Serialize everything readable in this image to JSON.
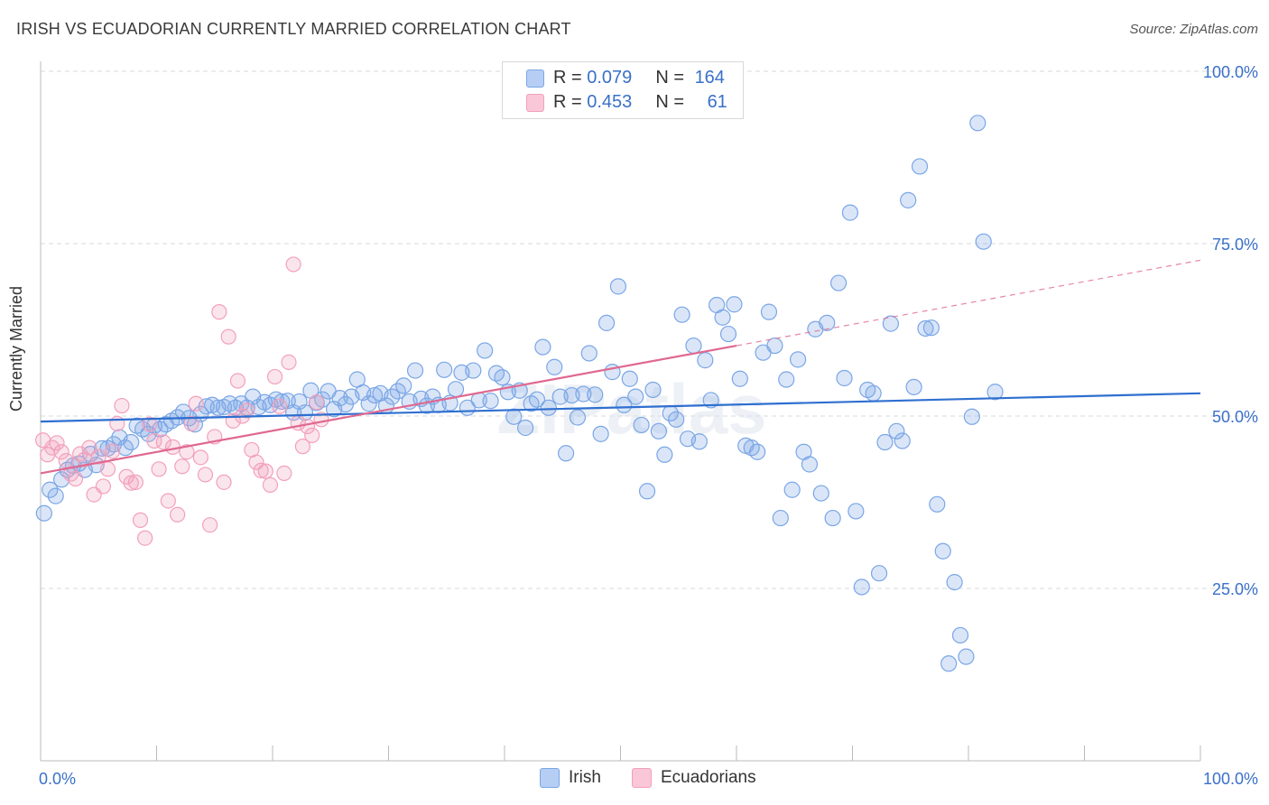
{
  "title": "IRISH VS ECUADORIAN CURRENTLY MARRIED CORRELATION CHART",
  "source": "Source: ZipAtlas.com",
  "watermark": "ZIPatlas",
  "stats": {
    "irish": {
      "r_label": "R = ",
      "r_value": "0.079",
      "n_label": "N = ",
      "n_value": "164"
    },
    "ecuadorian": {
      "r_label": "R = ",
      "r_value": "0.453",
      "n_label": "N = ",
      "n_value": "61"
    }
  },
  "legend": {
    "irish": "Irish",
    "ecuadorian": "Ecuadorians"
  },
  "chart_data": {
    "type": "scatter",
    "title": "IRISH VS ECUADORIAN CURRENTLY MARRIED CORRELATION CHART",
    "xlabel": "",
    "ylabel": "Currently Married",
    "xlim": [
      0,
      100
    ],
    "ylim": [
      0,
      100
    ],
    "x_tick_labels": [
      "0.0%",
      "100.0%"
    ],
    "y_tick_labels": [
      "25.0%",
      "50.0%",
      "75.0%",
      "100.0%"
    ],
    "y_ticks": [
      25,
      50,
      75,
      100
    ],
    "grid": true,
    "legend_position": "bottom",
    "colors": {
      "irish": "#7aa6e6",
      "irish_line": "#2f6fd0",
      "ecuadorian": "#f2a0bb",
      "ecuadorian_line": "#e06890",
      "axis_text": "#3a70c8"
    },
    "series": [
      {
        "name": "Irish",
        "trend": {
          "x": [
            0,
            100
          ],
          "y": [
            49.2,
            53.3
          ]
        },
        "points": [
          [
            0.3,
            35.9
          ],
          [
            0.8,
            39.3
          ],
          [
            1.3,
            38.4
          ],
          [
            1.8,
            40.8
          ],
          [
            2.3,
            42.2
          ],
          [
            2.8,
            42.8
          ],
          [
            3.3,
            43.1
          ],
          [
            3.8,
            42.2
          ],
          [
            4.3,
            44.5
          ],
          [
            4.8,
            42.9
          ],
          [
            5.3,
            45.3
          ],
          [
            5.8,
            45.3
          ],
          [
            6.3,
            45.9
          ],
          [
            6.8,
            46.9
          ],
          [
            7.3,
            45.4
          ],
          [
            7.8,
            46.2
          ],
          [
            8.3,
            48.6
          ],
          [
            8.8,
            48.1
          ],
          [
            9.3,
            47.4
          ],
          [
            9.8,
            48.6
          ],
          [
            10.3,
            48.1
          ],
          [
            10.8,
            48.8
          ],
          [
            11.3,
            49.3
          ],
          [
            11.8,
            49.8
          ],
          [
            12.3,
            50.6
          ],
          [
            12.8,
            49.7
          ],
          [
            13.3,
            48.8
          ],
          [
            13.8,
            50.3
          ],
          [
            14.3,
            51.4
          ],
          [
            14.8,
            51.6
          ],
          [
            15.3,
            51.2
          ],
          [
            15.8,
            51.3
          ],
          [
            16.3,
            51.8
          ],
          [
            16.8,
            51.2
          ],
          [
            17.3,
            51.8
          ],
          [
            17.8,
            51.2
          ],
          [
            18.3,
            52.8
          ],
          [
            18.8,
            51.3
          ],
          [
            19.3,
            52.0
          ],
          [
            19.8,
            51.6
          ],
          [
            20.3,
            52.4
          ],
          [
            20.8,
            52.1
          ],
          [
            21.3,
            52.2
          ],
          [
            21.8,
            50.5
          ],
          [
            22.3,
            52.1
          ],
          [
            22.8,
            50.5
          ],
          [
            23.3,
            53.7
          ],
          [
            23.8,
            51.9
          ],
          [
            24.3,
            52.4
          ],
          [
            24.8,
            53.6
          ],
          [
            25.3,
            51.0
          ],
          [
            25.8,
            52.6
          ],
          [
            26.3,
            51.7
          ],
          [
            26.8,
            52.8
          ],
          [
            27.3,
            55.3
          ],
          [
            27.8,
            53.4
          ],
          [
            28.3,
            51.8
          ],
          [
            28.8,
            53.0
          ],
          [
            29.3,
            53.3
          ],
          [
            29.8,
            51.5
          ],
          [
            30.3,
            52.8
          ],
          [
            30.8,
            53.6
          ],
          [
            31.3,
            54.4
          ],
          [
            31.8,
            52.1
          ],
          [
            32.3,
            56.6
          ],
          [
            32.8,
            52.5
          ],
          [
            33.3,
            51.5
          ],
          [
            33.8,
            52.8
          ],
          [
            34.3,
            51.6
          ],
          [
            34.8,
            56.7
          ],
          [
            35.3,
            51.9
          ],
          [
            35.8,
            53.9
          ],
          [
            36.3,
            56.3
          ],
          [
            36.8,
            51.2
          ],
          [
            37.3,
            56.6
          ],
          [
            37.8,
            52.3
          ],
          [
            38.3,
            59.5
          ],
          [
            38.8,
            52.2
          ],
          [
            39.3,
            56.2
          ],
          [
            39.8,
            55.6
          ],
          [
            40.3,
            53.5
          ],
          [
            40.8,
            49.9
          ],
          [
            41.3,
            53.7
          ],
          [
            41.8,
            48.3
          ],
          [
            42.3,
            51.8
          ],
          [
            42.8,
            52.4
          ],
          [
            43.3,
            60.0
          ],
          [
            43.8,
            51.2
          ],
          [
            44.3,
            57.1
          ],
          [
            44.8,
            52.8
          ],
          [
            45.3,
            44.6
          ],
          [
            45.8,
            53.0
          ],
          [
            46.3,
            49.8
          ],
          [
            46.8,
            53.2
          ],
          [
            47.3,
            59.1
          ],
          [
            47.8,
            53.1
          ],
          [
            48.3,
            47.4
          ],
          [
            48.8,
            63.5
          ],
          [
            49.3,
            56.4
          ],
          [
            49.8,
            68.8
          ],
          [
            50.3,
            51.6
          ],
          [
            50.8,
            55.4
          ],
          [
            51.3,
            52.8
          ],
          [
            51.8,
            48.7
          ],
          [
            52.3,
            39.1
          ],
          [
            52.8,
            53.8
          ],
          [
            53.3,
            47.8
          ],
          [
            53.8,
            44.4
          ],
          [
            54.3,
            50.4
          ],
          [
            54.8,
            49.5
          ],
          [
            55.3,
            64.7
          ],
          [
            55.8,
            46.7
          ],
          [
            56.3,
            60.2
          ],
          [
            56.8,
            46.3
          ],
          [
            57.3,
            58.1
          ],
          [
            57.8,
            52.3
          ],
          [
            58.3,
            66.1
          ],
          [
            58.8,
            64.3
          ],
          [
            59.3,
            61.9
          ],
          [
            59.8,
            66.2
          ],
          [
            60.3,
            55.4
          ],
          [
            60.8,
            45.7
          ],
          [
            61.3,
            45.4
          ],
          [
            61.8,
            44.8
          ],
          [
            62.3,
            59.2
          ],
          [
            62.8,
            65.1
          ],
          [
            63.3,
            60.2
          ],
          [
            63.8,
            35.2
          ],
          [
            64.3,
            55.3
          ],
          [
            64.8,
            39.3
          ],
          [
            65.3,
            58.2
          ],
          [
            65.8,
            44.8
          ],
          [
            66.3,
            43.0
          ],
          [
            66.8,
            62.6
          ],
          [
            67.3,
            38.8
          ],
          [
            67.8,
            63.5
          ],
          [
            68.3,
            35.2
          ],
          [
            68.8,
            69.3
          ],
          [
            69.3,
            55.5
          ],
          [
            69.8,
            79.5
          ],
          [
            70.3,
            36.2
          ],
          [
            70.8,
            25.2
          ],
          [
            71.3,
            53.8
          ],
          [
            71.8,
            53.3
          ],
          [
            72.3,
            27.2
          ],
          [
            72.8,
            46.2
          ],
          [
            73.3,
            63.4
          ],
          [
            73.8,
            47.8
          ],
          [
            74.3,
            46.4
          ],
          [
            74.8,
            81.3
          ],
          [
            75.3,
            54.2
          ],
          [
            75.8,
            86.2
          ],
          [
            76.3,
            62.7
          ],
          [
            76.8,
            62.8
          ],
          [
            77.3,
            37.2
          ],
          [
            77.8,
            30.4
          ],
          [
            78.3,
            14.1
          ],
          [
            78.8,
            25.9
          ],
          [
            79.3,
            18.2
          ],
          [
            79.8,
            15.1
          ],
          [
            80.3,
            49.9
          ],
          [
            80.8,
            92.5
          ],
          [
            81.3,
            75.3
          ],
          [
            82.3,
            53.5
          ]
        ]
      },
      {
        "name": "Ecuadorians",
        "trend": {
          "x": [
            0,
            60
          ],
          "y": [
            41.7,
            60.2
          ]
        },
        "dashed_trend": {
          "x": [
            60,
            100
          ],
          "y": [
            60.2,
            72.6
          ]
        },
        "points": [
          [
            0.2,
            46.5
          ],
          [
            0.6,
            44.4
          ],
          [
            1.0,
            45.4
          ],
          [
            1.4,
            46.1
          ],
          [
            1.8,
            44.8
          ],
          [
            2.2,
            43.5
          ],
          [
            2.6,
            41.6
          ],
          [
            3.0,
            40.9
          ],
          [
            3.4,
            44.5
          ],
          [
            3.8,
            43.7
          ],
          [
            4.2,
            45.4
          ],
          [
            4.6,
            38.6
          ],
          [
            5.0,
            44.1
          ],
          [
            5.4,
            39.8
          ],
          [
            5.8,
            42.3
          ],
          [
            6.2,
            44.9
          ],
          [
            6.6,
            48.9
          ],
          [
            7.0,
            51.5
          ],
          [
            7.4,
            41.2
          ],
          [
            7.8,
            40.3
          ],
          [
            8.2,
            40.4
          ],
          [
            8.6,
            34.9
          ],
          [
            9.0,
            32.3
          ],
          [
            9.4,
            48.8
          ],
          [
            9.8,
            46.4
          ],
          [
            10.2,
            42.3
          ],
          [
            10.6,
            46.2
          ],
          [
            11.0,
            37.7
          ],
          [
            11.4,
            45.5
          ],
          [
            11.8,
            35.7
          ],
          [
            12.2,
            42.7
          ],
          [
            12.6,
            44.8
          ],
          [
            13.0,
            48.9
          ],
          [
            13.4,
            51.8
          ],
          [
            13.8,
            44.0
          ],
          [
            14.2,
            41.5
          ],
          [
            14.6,
            34.2
          ],
          [
            15.0,
            47.0
          ],
          [
            15.4,
            65.1
          ],
          [
            15.8,
            40.4
          ],
          [
            16.2,
            61.5
          ],
          [
            16.6,
            49.3
          ],
          [
            17.0,
            55.1
          ],
          [
            17.4,
            50.0
          ],
          [
            17.8,
            50.8
          ],
          [
            18.2,
            45.1
          ],
          [
            18.6,
            43.3
          ],
          [
            19.0,
            42.1
          ],
          [
            19.4,
            42.0
          ],
          [
            19.8,
            40.0
          ],
          [
            20.2,
            55.7
          ],
          [
            20.6,
            51.4
          ],
          [
            21.0,
            41.7
          ],
          [
            21.4,
            57.8
          ],
          [
            21.8,
            72.0
          ],
          [
            22.2,
            49.0
          ],
          [
            22.6,
            45.6
          ],
          [
            23.0,
            48.5
          ],
          [
            23.4,
            47.2
          ],
          [
            23.8,
            52.0
          ],
          [
            24.2,
            49.5
          ]
        ]
      }
    ]
  }
}
